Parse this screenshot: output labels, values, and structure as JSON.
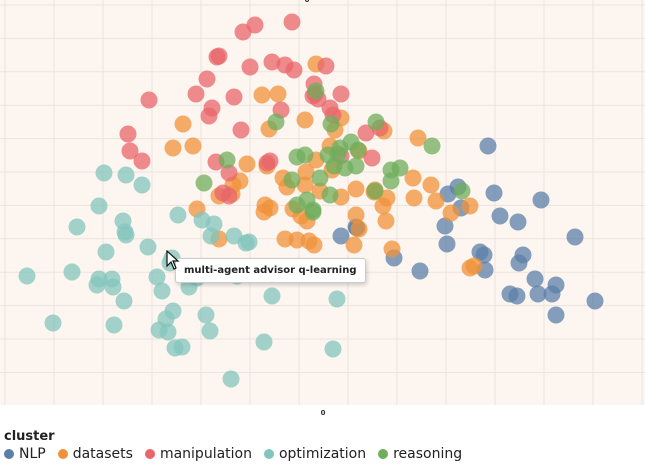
{
  "chart_data": {
    "type": "scatter",
    "title": "",
    "xlabel": "",
    "ylabel": "",
    "top_tick_label": "0",
    "x_tick_label": "0",
    "background": "#fdf6f0",
    "grid": true,
    "legend": {
      "title": "cluster",
      "placement": "bottom-left"
    },
    "series": [
      {
        "name": "NLP",
        "color": "#5b7fa8",
        "points": [
          [
            488,
            146
          ],
          [
            458,
            187
          ],
          [
            448,
            194
          ],
          [
            494,
            193
          ],
          [
            461,
            208
          ],
          [
            541,
            200
          ],
          [
            445,
            226
          ],
          [
            500,
            216
          ],
          [
            518,
            222
          ],
          [
            447,
            244
          ],
          [
            480,
            252
          ],
          [
            575,
            237
          ],
          [
            484,
            255
          ],
          [
            523,
            255
          ],
          [
            485,
            270
          ],
          [
            519,
            263
          ],
          [
            535,
            279
          ],
          [
            556,
            285
          ],
          [
            538,
            294
          ],
          [
            394,
            258
          ],
          [
            420,
            271
          ],
          [
            510,
            294
          ],
          [
            552,
            294
          ],
          [
            517,
            296
          ],
          [
            595,
            301
          ],
          [
            556,
            315
          ],
          [
            357,
            228
          ],
          [
            341,
            236
          ],
          [
            356,
            227
          ]
        ]
      },
      {
        "name": "datasets",
        "color": "#f0923a",
        "points": [
          [
            316,
            64
          ],
          [
            262,
            95
          ],
          [
            278,
            94
          ],
          [
            305,
            120
          ],
          [
            183,
            124
          ],
          [
            269,
            129
          ],
          [
            193,
            146
          ],
          [
            173,
            148
          ],
          [
            335,
            130
          ],
          [
            341,
            118
          ],
          [
            418,
            138
          ],
          [
            384,
            131
          ],
          [
            359,
            151
          ],
          [
            267,
            166
          ],
          [
            247,
            164
          ],
          [
            330,
            146
          ],
          [
            316,
            160
          ],
          [
            306,
            172
          ],
          [
            332,
            170
          ],
          [
            283,
            178
          ],
          [
            240,
            181
          ],
          [
            287,
            187
          ],
          [
            320,
            191
          ],
          [
            341,
            197
          ],
          [
            375,
            190
          ],
          [
            356,
            189
          ],
          [
            265,
            205
          ],
          [
            219,
            196
          ],
          [
            232,
            194
          ],
          [
            270,
            208
          ],
          [
            301,
            216
          ],
          [
            264,
            212
          ],
          [
            197,
            209
          ],
          [
            293,
            209
          ],
          [
            307,
            221
          ],
          [
            383,
            206
          ],
          [
            413,
            178
          ],
          [
            414,
            198
          ],
          [
            431,
            185
          ],
          [
            436,
            201
          ],
          [
            451,
            213
          ],
          [
            470,
            206
          ],
          [
            297,
            240
          ],
          [
            309,
            241
          ],
          [
            285,
            239
          ],
          [
            219,
            239
          ],
          [
            314,
            245
          ],
          [
            356,
            215
          ],
          [
            359,
            229
          ],
          [
            386,
            221
          ],
          [
            387,
            198
          ],
          [
            392,
            249
          ],
          [
            474,
            266
          ],
          [
            470,
            268
          ],
          [
            354,
            245
          ],
          [
            233,
            185
          ],
          [
            374,
            192
          ],
          [
            305,
            185
          ]
        ]
      },
      {
        "name": "manipulation",
        "color": "#e8666b",
        "points": [
          [
            255,
            25
          ],
          [
            243,
            32
          ],
          [
            292,
            22
          ],
          [
            219,
            56
          ],
          [
            250,
            67
          ],
          [
            272,
            62
          ],
          [
            285,
            65
          ],
          [
            294,
            70
          ],
          [
            326,
            66
          ],
          [
            217,
            57
          ],
          [
            207,
            79
          ],
          [
            196,
            94
          ],
          [
            234,
            97
          ],
          [
            212,
            108
          ],
          [
            149,
            100
          ],
          [
            314,
            84
          ],
          [
            313,
            96
          ],
          [
            318,
            99
          ],
          [
            333,
            115
          ],
          [
            281,
            110
          ],
          [
            209,
            116
          ],
          [
            330,
            108
          ],
          [
            341,
            94
          ],
          [
            128,
            134
          ],
          [
            241,
            130
          ],
          [
            130,
            151
          ],
          [
            142,
            161
          ],
          [
            216,
            162
          ],
          [
            267,
            163
          ],
          [
            229,
            173
          ],
          [
            223,
            193
          ],
          [
            229,
            196
          ],
          [
            341,
            156
          ],
          [
            366,
            133
          ],
          [
            372,
            158
          ],
          [
            380,
            128
          ],
          [
            315,
            94
          ],
          [
            270,
            161
          ]
        ]
      },
      {
        "name": "optimization",
        "color": "#83c4bc",
        "points": [
          [
            104,
            173
          ],
          [
            126,
            175
          ],
          [
            142,
            185
          ],
          [
            99,
            206
          ],
          [
            77,
            227
          ],
          [
            123,
            221
          ],
          [
            126,
            235
          ],
          [
            125,
            232
          ],
          [
            178,
            215
          ],
          [
            202,
            220
          ],
          [
            214,
            224
          ],
          [
            211,
            236
          ],
          [
            106,
            252
          ],
          [
            148,
            247
          ],
          [
            27,
            276
          ],
          [
            72,
            272
          ],
          [
            99,
            279
          ],
          [
            112,
            279
          ],
          [
            97,
            285
          ],
          [
            113,
            287
          ],
          [
            157,
            277
          ],
          [
            162,
            291
          ],
          [
            172,
            258
          ],
          [
            170,
            263
          ],
          [
            189,
            270
          ],
          [
            197,
            278
          ],
          [
            189,
            287
          ],
          [
            237,
            276
          ],
          [
            243,
            268
          ],
          [
            246,
            243
          ],
          [
            272,
            296
          ],
          [
            124,
            301
          ],
          [
            53,
            323
          ],
          [
            114,
            325
          ],
          [
            173,
            311
          ],
          [
            166,
            319
          ],
          [
            206,
            315
          ],
          [
            168,
            332
          ],
          [
            210,
            331
          ],
          [
            175,
            348
          ],
          [
            182,
            347
          ],
          [
            264,
            342
          ],
          [
            333,
            349
          ],
          [
            231,
            379
          ],
          [
            337,
            299
          ],
          [
            249,
            242
          ],
          [
            234,
            236
          ],
          [
            159,
            330
          ]
        ]
      },
      {
        "name": "reasoning",
        "color": "#6fae5c",
        "points": [
          [
            316,
            91
          ],
          [
            331,
            124
          ],
          [
            276,
            122
          ],
          [
            376,
            122
          ],
          [
            432,
            146
          ],
          [
            340,
            148
          ],
          [
            351,
            142
          ],
          [
            358,
            150
          ],
          [
            227,
            160
          ],
          [
            297,
            157
          ],
          [
            305,
            155
          ],
          [
            328,
            155
          ],
          [
            334,
            166
          ],
          [
            345,
            168
          ],
          [
            292,
            180
          ],
          [
            320,
            178
          ],
          [
            356,
            166
          ],
          [
            391,
            170
          ],
          [
            400,
            168
          ],
          [
            391,
            181
          ],
          [
            462,
            191
          ],
          [
            204,
            183
          ],
          [
            307,
            200
          ],
          [
            297,
            205
          ],
          [
            313,
            210
          ],
          [
            313,
            212
          ],
          [
            330,
            195
          ],
          [
            375,
            191
          ],
          [
            338,
            154
          ]
        ]
      }
    ]
  },
  "tooltip": {
    "text": "multi-agent advisor q-learning"
  }
}
